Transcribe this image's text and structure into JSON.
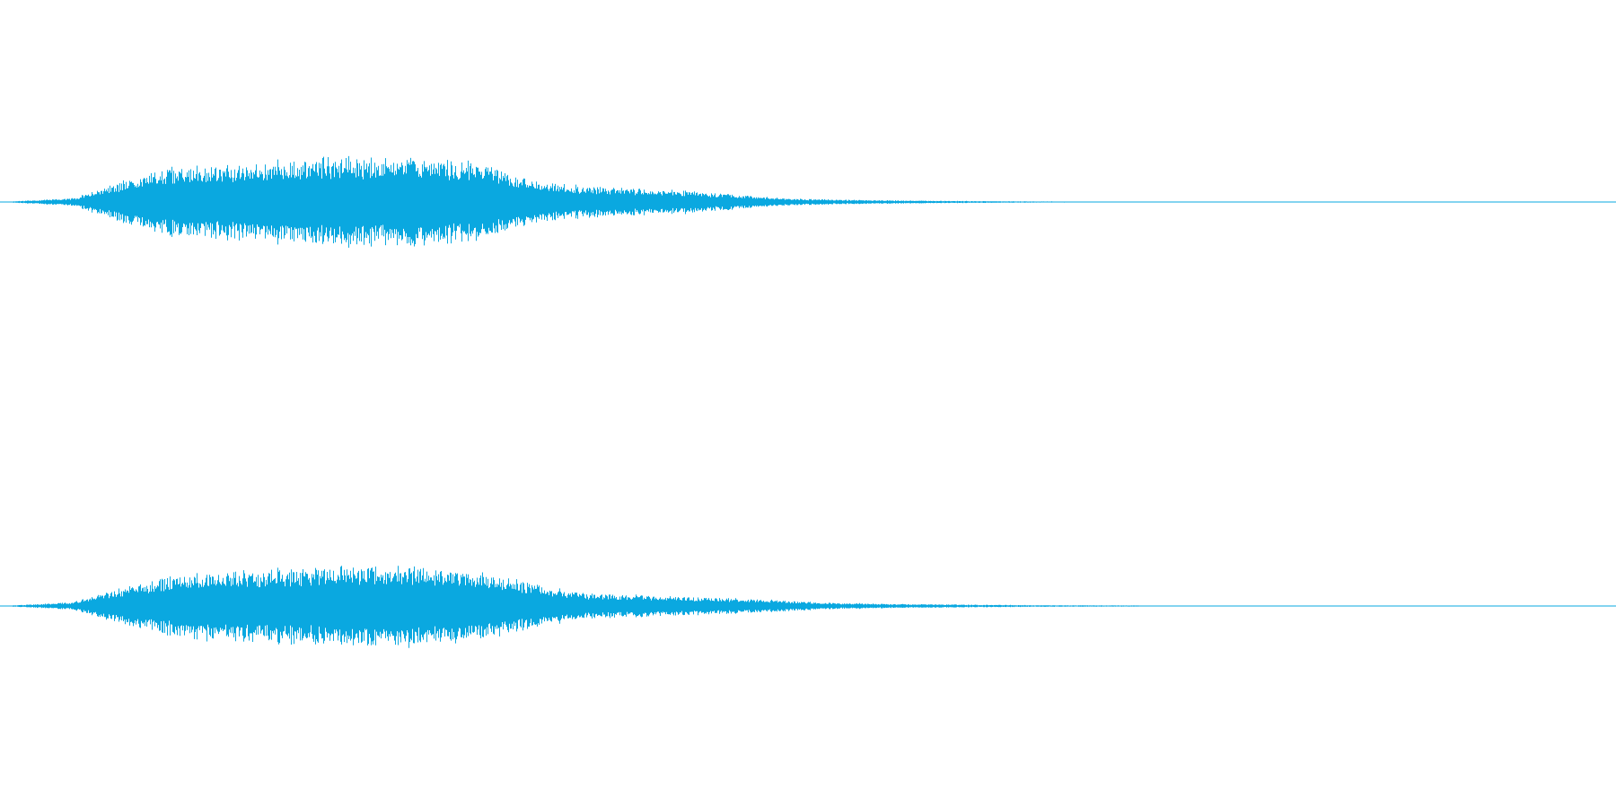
{
  "view": {
    "background_color": "#ffffff",
    "wave_color": "#0aa8e0"
  },
  "channels": [
    {
      "id": "left",
      "peak_amplitude": 0.24,
      "envelope": [
        [
          0.0,
          0.0
        ],
        [
          0.045,
          0.02
        ],
        [
          0.07,
          0.09
        ],
        [
          0.1,
          0.17
        ],
        [
          0.13,
          0.2
        ],
        [
          0.17,
          0.215
        ],
        [
          0.21,
          0.23
        ],
        [
          0.24,
          0.235
        ],
        [
          0.27,
          0.225
        ],
        [
          0.3,
          0.2
        ],
        [
          0.32,
          0.13
        ],
        [
          0.35,
          0.09
        ],
        [
          0.38,
          0.075
        ],
        [
          0.42,
          0.06
        ],
        [
          0.46,
          0.035
        ],
        [
          0.49,
          0.018
        ],
        [
          0.52,
          0.012
        ],
        [
          0.56,
          0.008
        ],
        [
          0.6,
          0.005
        ],
        [
          0.64,
          0.003
        ],
        [
          0.68,
          0.002
        ],
        [
          0.71,
          0.0
        ],
        [
          1.0,
          0.0
        ]
      ]
    },
    {
      "id": "right",
      "peak_amplitude": 0.22,
      "envelope": [
        [
          0.0,
          0.0
        ],
        [
          0.045,
          0.02
        ],
        [
          0.07,
          0.08
        ],
        [
          0.1,
          0.15
        ],
        [
          0.13,
          0.175
        ],
        [
          0.17,
          0.195
        ],
        [
          0.21,
          0.205
        ],
        [
          0.24,
          0.22
        ],
        [
          0.27,
          0.195
        ],
        [
          0.3,
          0.17
        ],
        [
          0.33,
          0.12
        ],
        [
          0.36,
          0.065
        ],
        [
          0.4,
          0.055
        ],
        [
          0.44,
          0.045
        ],
        [
          0.48,
          0.03
        ],
        [
          0.52,
          0.015
        ],
        [
          0.56,
          0.01
        ],
        [
          0.6,
          0.007
        ],
        [
          0.65,
          0.004
        ],
        [
          0.7,
          0.003
        ],
        [
          0.75,
          0.0
        ],
        [
          1.0,
          0.0
        ]
      ]
    }
  ]
}
